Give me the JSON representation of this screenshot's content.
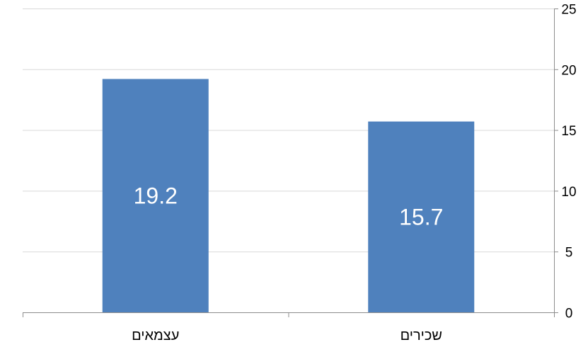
{
  "chart_data": {
    "type": "bar",
    "categories": [
      "עצמאים",
      "שכירים"
    ],
    "values": [
      19.2,
      15.7
    ],
    "data_labels": [
      "19.2",
      "15.7"
    ],
    "title": "",
    "xlabel": "",
    "ylabel": "",
    "ylim": [
      0,
      25
    ],
    "yticks": [
      0,
      5,
      10,
      15,
      20,
      25
    ],
    "ytick_labels": [
      "0",
      "5",
      "10",
      "15",
      "20",
      "25"
    ],
    "y_axis_side": "right",
    "grid": true,
    "legend": "none",
    "colors": {
      "bar": "#4F81BD",
      "grid": "#D9D9D9",
      "axis": "#8C8C8C",
      "text": "#000000",
      "data_label": "#FFFFFF"
    }
  }
}
